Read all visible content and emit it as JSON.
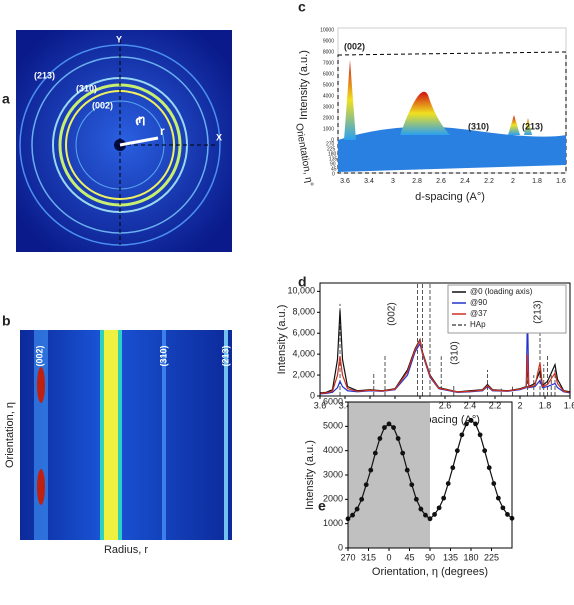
{
  "panel_labels": [
    "a",
    "b",
    "c",
    "d",
    "e"
  ],
  "panel_a": {
    "y_axis": "Y",
    "x_axis": "X",
    "rings": [
      "(213)",
      "(310)",
      "(002)"
    ],
    "eta": "η",
    "r": "r"
  },
  "panel_b": {
    "y_label": "Orientation, η",
    "x_label": "Radius, r",
    "peaks": [
      "(002)",
      "(310)",
      "(213)"
    ]
  },
  "panel_c": {
    "y_label": "Intensity (a.u.)",
    "z_label": "Orientation, η°",
    "x_label": "d-spacing (A°)",
    "peaks": [
      "(002)",
      "(310)",
      "(213)"
    ],
    "intensity_ticks": [
      "10000",
      "9000",
      "8000",
      "7000",
      "6000",
      "5000",
      "4000",
      "3000",
      "2000",
      "1000",
      "0"
    ],
    "orientation_ticks": [
      "270",
      "225",
      "180",
      "135",
      "90",
      "45",
      "0"
    ],
    "d_ticks": [
      "3.6",
      "3.4",
      "3",
      "2.8",
      "2.6",
      "2.4",
      "2.2",
      "2",
      "1.8",
      "1.6"
    ]
  },
  "chart_data": [
    {
      "type": "line",
      "x_label": "d-spacing (A°)",
      "y_label": "Intensity (a.u.)",
      "annotations": [
        "(002)",
        "(310)",
        "(213)"
      ],
      "xlim": [
        3.6,
        1.6
      ],
      "ylim": [
        0,
        10800
      ],
      "xticks": [
        3.6,
        3.4,
        3.2,
        3,
        2.8,
        2.6,
        2.4,
        2.2,
        2,
        1.8,
        1.6
      ],
      "yticks": [
        0,
        {
          "value": 2000,
          "label": "2,000"
        },
        {
          "value": 4000,
          "label": "4,000"
        },
        {
          "value": 6000,
          "label": "6,000"
        },
        {
          "value": 8000,
          "label": "8,000"
        },
        {
          "value": 10000,
          "label": "10,000"
        }
      ],
      "legend": "top-right",
      "x": [
        3.6,
        3.55,
        3.5,
        3.46,
        3.44,
        3.42,
        3.38,
        3.3,
        3.2,
        3.1,
        3.0,
        2.9,
        2.84,
        2.8,
        2.78,
        2.72,
        2.65,
        2.5,
        2.4,
        2.3,
        2.26,
        2.22,
        2.1,
        2.0,
        1.95,
        1.94,
        1.93,
        1.88,
        1.84,
        1.82,
        1.78,
        1.72,
        1.7,
        1.65,
        1.6
      ],
      "series": [
        {
          "name": "@0 (loading axis)",
          "color": "#111111",
          "values": [
            300,
            350,
            600,
            3500,
            8200,
            3500,
            900,
            500,
            600,
            500,
            700,
            2500,
            4500,
            5400,
            4200,
            2000,
            800,
            400,
            500,
            600,
            1100,
            600,
            500,
            700,
            900,
            3000,
            900,
            1200,
            2400,
            1000,
            1400,
            3000,
            1600,
            500,
            400
          ]
        },
        {
          "name": "@90",
          "color": "#2233cc",
          "values": [
            200,
            250,
            350,
            800,
            1400,
            900,
            500,
            400,
            500,
            450,
            600,
            2000,
            4200,
            5000,
            4000,
            1800,
            700,
            350,
            400,
            500,
            900,
            500,
            450,
            600,
            800,
            8200,
            800,
            900,
            1500,
            800,
            900,
            1200,
            800,
            400,
            300
          ]
        },
        {
          "name": "@37",
          "color": "#d03020",
          "values": [
            250,
            300,
            450,
            2000,
            3800,
            2000,
            700,
            450,
            550,
            480,
            650,
            2300,
            4400,
            5300,
            4100,
            1900,
            750,
            380,
            450,
            550,
            1000,
            550,
            480,
            650,
            850,
            4000,
            850,
            1000,
            3200,
            900,
            1100,
            2200,
            1200,
            450,
            350
          ]
        }
      ],
      "reference_lines": {
        "name": "HAp",
        "color": "#555555",
        "x": [
          3.44,
          3.17,
          3.08,
          2.82,
          2.78,
          2.72,
          2.63,
          2.53,
          2.26,
          2.15,
          2.06,
          1.94,
          1.89,
          1.84,
          1.81,
          1.78,
          1.75,
          1.72
        ],
        "values": [
          8800,
          2300,
          4000,
          10800,
          10800,
          10800,
          3800,
          1000,
          2500,
          700,
          900,
          1500,
          2000,
          9000,
          3000,
          4000,
          2000,
          2500
        ]
      }
    },
    {
      "type": "line",
      "x_label": "Orientation, η (degrees)",
      "y_label": "Intensity (a.u.)",
      "xlim": [
        -90,
        270
      ],
      "ylim": [
        0,
        6000
      ],
      "xticks": [
        {
          "value": -90,
          "label": "270"
        },
        {
          "value": -45,
          "label": "315"
        },
        0,
        45,
        90,
        135,
        180,
        225
      ],
      "yticks": [
        0,
        1000,
        2000,
        3000,
        4000,
        5000,
        6000
      ],
      "shaded_range": [
        -90,
        90
      ],
      "markers": true,
      "x": [
        -90,
        -80,
        -70,
        -60,
        -50,
        -40,
        -30,
        -20,
        -10,
        0,
        10,
        20,
        30,
        40,
        50,
        60,
        70,
        80,
        90,
        100,
        110,
        120,
        130,
        140,
        150,
        160,
        170,
        180,
        190,
        200,
        210,
        220,
        230,
        240,
        250,
        260,
        270
      ],
      "series": [
        {
          "color": "#111111",
          "values": [
            1200,
            1350,
            1600,
            2000,
            2600,
            3200,
            3900,
            4500,
            4950,
            5100,
            4950,
            4500,
            3900,
            3200,
            2600,
            2000,
            1600,
            1350,
            1200,
            1380,
            1650,
            2050,
            2650,
            3300,
            4000,
            4650,
            5100,
            5250,
            5100,
            4650,
            4000,
            3300,
            2650,
            2050,
            1650,
            1380,
            1220
          ]
        }
      ]
    }
  ]
}
